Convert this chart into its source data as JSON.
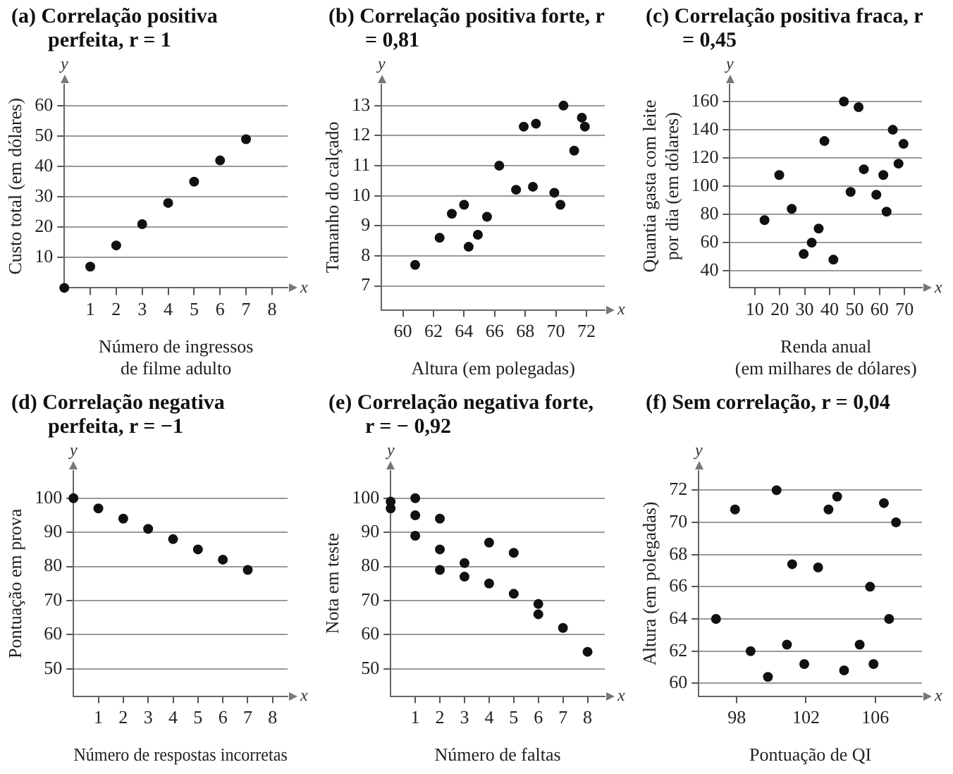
{
  "chart_data": [
    {
      "type": "scatter",
      "title": "(a) Correlação positiva perfeita, r = 1",
      "xlabel": "Número de ingressos\nde filme adulto",
      "ylabel": "Custo total (em dólares)",
      "annotations": [
        "y",
        "x"
      ],
      "color": "#111111",
      "marker": "circle",
      "grid": "y",
      "x": [
        0,
        1,
        2,
        3,
        4,
        5,
        6,
        7
      ],
      "values": [
        0,
        7,
        14,
        21,
        28,
        35,
        42,
        49
      ],
      "xlim": [
        0,
        8.6
      ],
      "xticks": [
        1,
        2,
        3,
        4,
        5,
        6,
        7,
        8
      ],
      "ylim": [
        0,
        67
      ],
      "yticks": [
        10,
        20,
        30,
        40,
        50,
        60
      ]
    },
    {
      "type": "scatter",
      "title": "(b) Correlação positiva forte, r = 0,81",
      "xlabel": "Altura (em polegadas)",
      "ylabel": "Tamanho do calçado",
      "annotations": [
        "y",
        "x"
      ],
      "color": "#111111",
      "marker": "circle",
      "grid": "y",
      "x": [
        60.8,
        62.4,
        63.2,
        64.0,
        64.3,
        64.9,
        65.5,
        66.3,
        67.4,
        67.9,
        68.5,
        68.7,
        69.9,
        70.3,
        70.5,
        71.2,
        71.7,
        71.9
      ],
      "values": [
        7.7,
        8.6,
        9.4,
        9.7,
        8.3,
        8.7,
        9.3,
        11.0,
        10.2,
        12.3,
        10.3,
        12.4,
        10.1,
        9.7,
        13.0,
        11.5,
        12.6,
        12.3
      ],
      "xlim": [
        58.6,
        73.2
      ],
      "xticks": [
        60,
        62,
        64,
        66,
        68,
        70,
        72
      ],
      "ylim": [
        6.2,
        13.7
      ],
      "yticks": [
        7,
        8,
        9,
        10,
        11,
        12,
        13
      ]
    },
    {
      "type": "scatter",
      "title": "(c) Correlação positiva fraca, r = 0,45",
      "xlabel": "Renda anual\n(em milhares de dólares)",
      "ylabel": "Quantia gasta com leite\npor dia (em dólares)",
      "annotations": [
        "y",
        "x"
      ],
      "color": "#111111",
      "marker": "circle",
      "grid": "y",
      "x": [
        13.9,
        19.8,
        24.8,
        29.6,
        32.8,
        35.6,
        37.9,
        41.5,
        45.7,
        48.4,
        51.6,
        53.7,
        58.7,
        61.5,
        62.8,
        65.3,
        67.6,
        69.6
      ],
      "values": [
        76,
        108,
        84,
        52,
        60,
        70,
        132,
        48,
        160,
        96,
        156,
        112,
        94,
        108,
        82,
        140,
        116,
        130
      ],
      "xlim": [
        0,
        77
      ],
      "xticks": [
        10,
        20,
        30,
        40,
        50,
        60,
        70
      ],
      "ylim": [
        28,
        172
      ],
      "yticks": [
        40,
        60,
        80,
        100,
        120,
        140,
        160
      ]
    },
    {
      "type": "scatter",
      "title": "(d) Correlação negativa perfeita, r = −1",
      "xlabel": "Número de respostas incorretas",
      "ylabel": "Pontuação em prova",
      "annotations": [
        "y",
        "x"
      ],
      "color": "#111111",
      "marker": "circle",
      "grid": "y",
      "x": [
        0,
        1,
        2,
        3,
        4,
        5,
        6,
        7
      ],
      "values": [
        100,
        97,
        94,
        91,
        88,
        85,
        82,
        79
      ],
      "xlim": [
        0,
        8.6
      ],
      "xticks": [
        1,
        2,
        3,
        4,
        5,
        6,
        7,
        8
      ],
      "ylim": [
        42,
        108
      ],
      "yticks": [
        50,
        60,
        70,
        80,
        90,
        100
      ]
    },
    {
      "type": "scatter",
      "title": "(e) Correlação negativa forte, r = − 0,92",
      "xlabel": "Número de faltas",
      "ylabel": "Nota em teste",
      "annotations": [
        "y",
        "x"
      ],
      "color": "#111111",
      "marker": "circle",
      "grid": "y",
      "x": [
        0,
        0,
        1,
        1,
        1,
        2,
        2,
        2,
        3,
        3,
        4,
        4,
        5,
        5,
        6,
        6,
        7,
        8
      ],
      "values": [
        99,
        97,
        100,
        95,
        89,
        94,
        85,
        79,
        81,
        77,
        87,
        75,
        84,
        72,
        69,
        66,
        62,
        55
      ],
      "xlim": [
        0,
        8.7
      ],
      "xticks": [
        1,
        2,
        3,
        4,
        5,
        6,
        7,
        8
      ],
      "ylim": [
        42,
        108
      ],
      "yticks": [
        50,
        60,
        70,
        80,
        90,
        100
      ]
    },
    {
      "type": "scatter",
      "title": "(f) Sem correlação, r = 0,04",
      "xlabel": "Pontuação de QI",
      "ylabel": "Altura (em polegadas)",
      "annotations": [
        "y",
        "x"
      ],
      "color": "#111111",
      "marker": "circle",
      "grid": "y",
      "x": [
        96.8,
        97.9,
        98.8,
        99.8,
        100.3,
        100.9,
        101.2,
        101.9,
        102.7,
        103.3,
        103.8,
        104.2,
        105.1,
        105.7,
        105.9,
        106.5,
        106.8,
        107.2
      ],
      "values": [
        64.0,
        70.8,
        62.0,
        60.4,
        72.0,
        62.4,
        67.4,
        61.2,
        67.2,
        70.8,
        71.6,
        60.8,
        62.4,
        66.0,
        61.2,
        71.2,
        64.0,
        70.0
      ],
      "xlim": [
        95.8,
        108.7
      ],
      "xticks": [
        98,
        102,
        106
      ],
      "ylim": [
        59.2,
        73.2
      ],
      "yticks": [
        60,
        62,
        64,
        66,
        68,
        70,
        72
      ]
    }
  ]
}
